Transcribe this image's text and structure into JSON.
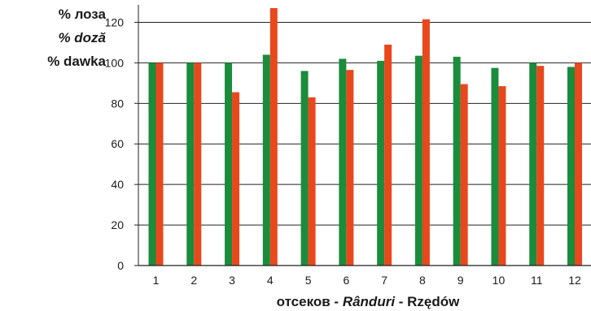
{
  "chart_data": {
    "type": "bar",
    "ylabel_lines": [
      "% лоза",
      "% doză",
      "% dawka"
    ],
    "xlabel_parts": [
      "отсеков - ",
      "Rânduri",
      " - Rzędów"
    ],
    "categories": [
      "1",
      "2",
      "3",
      "4",
      "5",
      "6",
      "7",
      "8",
      "9",
      "10",
      "11",
      "12"
    ],
    "series": [
      {
        "color": "#1a8c3c",
        "values": [
          100,
          100,
          100,
          104,
          96,
          102,
          101,
          103.5,
          103,
          97.5,
          100,
          98
        ]
      },
      {
        "color": "#e8481c",
        "values": [
          100,
          100,
          85.5,
          127,
          83,
          96.5,
          109,
          121.5,
          89.5,
          88.5,
          98.5,
          100
        ]
      }
    ],
    "ylim": [
      0,
      127
    ],
    "yticks": [
      0,
      20,
      40,
      60,
      80,
      100,
      120
    ],
    "grid": true,
    "legend": "none"
  }
}
